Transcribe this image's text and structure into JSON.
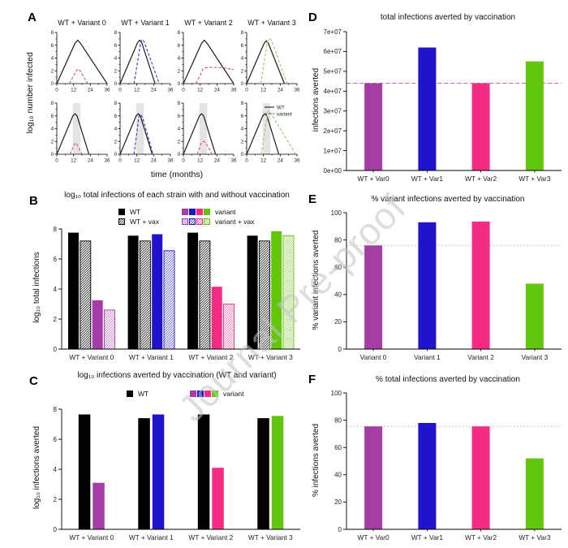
{
  "watermark": "Journal Pre-proof",
  "colors": {
    "variant_bar": [
      "#A63CA6",
      "#2013CC",
      "#F52C84",
      "#62C60D"
    ],
    "wt_bar": "#000000",
    "line_wt": "#1A1A1A",
    "line_variant": [
      "#D84A80",
      "#3B33C4",
      "#E0457C",
      "#8FCE62"
    ],
    "ref_dashed": "#E8609F",
    "ref_dotted": "#ECA9CF",
    "band": "#E4E4E4",
    "axis": "#000000"
  },
  "chart_data": [
    {
      "panel_label": "A",
      "type": "line",
      "ylabel": "log₁₀ number infected",
      "xlabel": "time (months)",
      "xlim": [
        0,
        36
      ],
      "ylim": [
        0,
        8
      ],
      "xticks": [
        0,
        12,
        24,
        36
      ],
      "xticks_minor": [
        6,
        18,
        30
      ],
      "yticks": [
        0,
        2,
        4,
        6,
        8
      ],
      "yticks_minor": [
        1,
        3,
        5,
        7
      ],
      "titles": [
        "WT + Variant 0",
        "WT + Variant 1",
        "WT + Variant 2",
        "WT + Variant 3"
      ],
      "legend": {
        "wt": "WT",
        "variant": "variant"
      },
      "band_x": [
        11.5,
        17
      ],
      "subplots": [
        {
          "row": 0,
          "col": 0,
          "band": false,
          "variant_idx": 0,
          "wt": [
            [
              0,
              0
            ],
            [
              13,
              6.3
            ],
            [
              15,
              6.8
            ],
            [
              17,
              6.3
            ],
            [
              36,
              0
            ]
          ],
          "variant": [
            [
              9,
              0
            ],
            [
              14,
              2.05
            ],
            [
              15.5,
              2.3
            ],
            [
              17,
              1.9
            ],
            [
              22,
              0
            ]
          ]
        },
        {
          "row": 0,
          "col": 1,
          "band": false,
          "variant_idx": 1,
          "wt": [
            [
              0,
              0
            ],
            [
              12.5,
              6.4
            ],
            [
              14,
              6.8
            ],
            [
              15.5,
              6.4
            ],
            [
              25,
              0
            ]
          ],
          "variant": [
            [
              10,
              0
            ],
            [
              14.8,
              6.6
            ],
            [
              16,
              6.9
            ],
            [
              17.3,
              6.5
            ],
            [
              28,
              0
            ]
          ]
        },
        {
          "row": 0,
          "col": 2,
          "band": false,
          "variant_idx": 2,
          "wt": [
            [
              0,
              0
            ],
            [
              13,
              6.3
            ],
            [
              15,
              6.8
            ],
            [
              17,
              6.3
            ],
            [
              36,
              0
            ]
          ],
          "variant": [
            [
              9,
              0
            ],
            [
              12,
              1.3
            ],
            [
              14,
              2.3
            ],
            [
              16,
              2.5
            ],
            [
              20,
              2.55
            ],
            [
              28,
              2.5
            ],
            [
              36,
              2.2
            ]
          ]
        },
        {
          "row": 0,
          "col": 3,
          "band": false,
          "variant_idx": 3,
          "wt": [
            [
              0,
              0
            ],
            [
              12.5,
              6.3
            ],
            [
              14,
              6.7
            ],
            [
              15.5,
              6.3
            ],
            [
              27,
              0
            ]
          ],
          "variant": [
            [
              10,
              0
            ],
            [
              15,
              6.7
            ],
            [
              16.5,
              7.05
            ],
            [
              18,
              6.6
            ],
            [
              29,
              0
            ]
          ]
        },
        {
          "row": 1,
          "col": 0,
          "band": true,
          "variant_idx": 0,
          "wt": [
            [
              0,
              0
            ],
            [
              11.5,
              6.0
            ],
            [
              13,
              6.35
            ],
            [
              14.5,
              6.0
            ],
            [
              23,
              0
            ]
          ],
          "variant": [
            [
              9.5,
              0
            ],
            [
              12.5,
              1.55
            ],
            [
              13.5,
              1.75
            ],
            [
              14.5,
              1.5
            ],
            [
              18,
              0
            ]
          ]
        },
        {
          "row": 1,
          "col": 1,
          "band": true,
          "variant_idx": 1,
          "wt": [
            [
              0,
              0
            ],
            [
              11.5,
              6.0
            ],
            [
              13,
              6.35
            ],
            [
              14.5,
              6.0
            ],
            [
              23,
              0
            ]
          ],
          "variant": [
            [
              10,
              0
            ],
            [
              13.5,
              6.0
            ],
            [
              14.5,
              6.25
            ],
            [
              16,
              5.8
            ],
            [
              23.5,
              0
            ]
          ]
        },
        {
          "row": 1,
          "col": 2,
          "band": true,
          "variant_idx": 2,
          "wt": [
            [
              0,
              0
            ],
            [
              11.5,
              6.0
            ],
            [
              13,
              6.35
            ],
            [
              14.5,
              6.0
            ],
            [
              23,
              0
            ]
          ],
          "variant": [
            [
              10,
              0
            ],
            [
              13,
              1.85
            ],
            [
              14.5,
              2.0
            ],
            [
              16,
              1.8
            ],
            [
              20.5,
              0
            ]
          ]
        },
        {
          "row": 1,
          "col": 3,
          "band": true,
          "variant_idx": 3,
          "legend": true,
          "wt": [
            [
              0,
              0
            ],
            [
              11.5,
              6.0
            ],
            [
              13,
              6.35
            ],
            [
              14.5,
              6.0
            ],
            [
              23,
              0
            ]
          ],
          "variant": [
            [
              10.5,
              0
            ],
            [
              15,
              6.5
            ],
            [
              16,
              6.8
            ],
            [
              18,
              6.2
            ],
            [
              35,
              0
            ]
          ]
        }
      ]
    },
    {
      "panel_label": "B",
      "type": "bar-grouped",
      "title": "log₁₀ total infections of each strain with and without vaccination",
      "ylabel": "log₁₀ total infections",
      "ylim": [
        0,
        8
      ],
      "yticks": [
        0,
        2,
        4,
        6,
        8
      ],
      "categories": [
        "WT + Variant 0",
        "WT + Variant 1",
        "WT + Variant 2",
        "WT + Variant 3"
      ],
      "series": [
        {
          "name": "WT",
          "style": "solid",
          "color": "wt",
          "values": [
            7.75,
            7.55,
            7.75,
            7.55
          ]
        },
        {
          "name": "WT + vax",
          "style": "hatch",
          "color": "wt",
          "values": [
            7.2,
            7.2,
            7.2,
            7.2
          ]
        },
        {
          "name": "variant",
          "style": "solid",
          "color": "variant",
          "values": [
            3.25,
            7.65,
            4.15,
            7.85
          ]
        },
        {
          "name": "variant + vax",
          "style": "hatch",
          "color": "variant",
          "values": [
            2.6,
            6.55,
            3.0,
            7.55
          ]
        }
      ]
    },
    {
      "panel_label": "C",
      "type": "bar-grouped",
      "title": "log₁₀ infections averted by vaccination (WT and variant)",
      "ylabel": "log₁₀ infections averted",
      "ylim": [
        0,
        8
      ],
      "yticks": [
        0,
        2,
        4,
        6,
        8
      ],
      "categories": [
        "WT + Variant 0",
        "WT + Variant 1",
        "WT + Variant 2",
        "WT + Variant 3"
      ],
      "series": [
        {
          "name": "WT",
          "style": "solid",
          "color": "wt",
          "values": [
            7.65,
            7.4,
            7.65,
            7.4
          ]
        },
        {
          "name": "variant",
          "style": "solid",
          "color": "variant",
          "values": [
            3.1,
            7.65,
            4.1,
            7.55
          ]
        }
      ]
    },
    {
      "panel_label": "D",
      "type": "bar",
      "title": "total infections averted by vaccination",
      "ylabel": "infections averted",
      "ylim": [
        0,
        70000000
      ],
      "yticks": [
        0,
        10000000,
        20000000,
        30000000,
        40000000,
        50000000,
        60000000,
        70000000
      ],
      "ytick_labels": [
        "0e+00",
        "1e+07",
        "2e+07",
        "3e+07",
        "4e+07",
        "5e+07",
        "6e+07",
        "7e+07"
      ],
      "categories": [
        "WT + Var0",
        "WT + Var1",
        "WT + Var2",
        "WT + Var3"
      ],
      "values": [
        44000000,
        62000000,
        44000000,
        55000000
      ],
      "refline": {
        "value": 44000000,
        "style": "dashed"
      }
    },
    {
      "panel_label": "E",
      "type": "bar",
      "title": "% variant infections averted by vaccination",
      "ylabel": "% variant infections averted",
      "ylim": [
        0,
        100
      ],
      "yticks": [
        0,
        20,
        40,
        60,
        80,
        100
      ],
      "categories": [
        "Variant 0",
        "Variant 1",
        "Variant 2",
        "Variant 3"
      ],
      "values": [
        76,
        93,
        93.5,
        48
      ],
      "refline": {
        "value": 76,
        "style": "dotted"
      }
    },
    {
      "panel_label": "F",
      "type": "bar",
      "title": "% total infections averted by vaccination",
      "ylabel": "% infections averted",
      "ylim": [
        0,
        100
      ],
      "yticks": [
        0,
        20,
        40,
        60,
        80,
        100
      ],
      "categories": [
        "WT + Var0",
        "WT + Var1",
        "WT + Var2",
        "WT + Var3"
      ],
      "values": [
        75.5,
        78,
        75.5,
        52
      ],
      "refline": {
        "value": 75.5,
        "style": "dotted"
      }
    }
  ]
}
